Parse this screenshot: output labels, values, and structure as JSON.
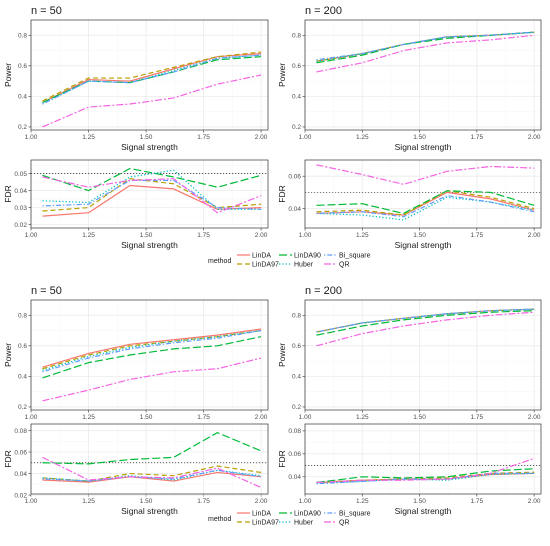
{
  "colors": {
    "LinDA": "#F8766D",
    "LinDA97": "#B79F00",
    "LinDA90": "#00BA38",
    "Huber": "#00BFC4",
    "Bi_square": "#619CFF",
    "QR": "#F564E3",
    "panel_border": "#333333",
    "grid_major": "#ebebeb",
    "grid_minor": "#f5f5f5"
  },
  "line_styles": {
    "LinDA": "solid",
    "LinDA97": "dashed",
    "LinDA90": "longdash",
    "Huber": "dotted",
    "Bi_square": "dotdash",
    "QR": "twodash"
  },
  "legend": {
    "title": "method",
    "entries": [
      "LinDA",
      "LinDA97",
      "LinDA90",
      "Huber",
      "Bi_square",
      "QR"
    ]
  },
  "chart_data": [
    {
      "type": "line",
      "title": "n = 50",
      "xlabel": "Signal strength",
      "ylabel": "Power",
      "x": [
        1.05,
        1.25,
        1.43,
        1.62,
        1.81,
        2.0
      ],
      "xlim": [
        1.0,
        2.03
      ],
      "ylim": [
        0.18,
        0.9
      ],
      "xticks": [
        "1.00",
        "1.25",
        "1.50",
        "1.75",
        "2.00"
      ],
      "yticks": [
        "0.2",
        "0.4",
        "0.6",
        "0.8"
      ],
      "series": [
        {
          "name": "LinDA",
          "values": [
            0.36,
            0.51,
            0.5,
            0.58,
            0.66,
            0.68
          ]
        },
        {
          "name": "LinDA97",
          "values": [
            0.37,
            0.52,
            0.52,
            0.59,
            0.66,
            0.69
          ]
        },
        {
          "name": "LinDA90",
          "values": [
            0.36,
            0.5,
            0.49,
            0.56,
            0.64,
            0.66
          ]
        },
        {
          "name": "Huber",
          "values": [
            0.35,
            0.5,
            0.49,
            0.57,
            0.65,
            0.67
          ]
        },
        {
          "name": "Bi_square",
          "values": [
            0.35,
            0.5,
            0.49,
            0.56,
            0.65,
            0.67
          ]
        },
        {
          "name": "QR",
          "values": [
            0.2,
            0.33,
            0.35,
            0.39,
            0.48,
            0.54
          ]
        }
      ]
    },
    {
      "type": "line",
      "title": "n = 200",
      "xlabel": "Signal strength",
      "ylabel": "Power",
      "x": [
        1.05,
        1.25,
        1.43,
        1.62,
        1.81,
        2.0
      ],
      "xlim": [
        1.0,
        2.03
      ],
      "ylim": [
        0.18,
        0.9
      ],
      "xticks": [
        "1.00",
        "1.25",
        "1.50",
        "1.75",
        "2.00"
      ],
      "yticks": [
        "0.2",
        "0.4",
        "0.6",
        "0.8"
      ],
      "series": [
        {
          "name": "LinDA",
          "values": [
            0.63,
            0.68,
            0.74,
            0.79,
            0.8,
            0.82
          ]
        },
        {
          "name": "LinDA97",
          "values": [
            0.63,
            0.68,
            0.74,
            0.79,
            0.8,
            0.82
          ]
        },
        {
          "name": "LinDA90",
          "values": [
            0.62,
            0.67,
            0.74,
            0.78,
            0.8,
            0.82
          ]
        },
        {
          "name": "Huber",
          "values": [
            0.63,
            0.68,
            0.74,
            0.79,
            0.8,
            0.82
          ]
        },
        {
          "name": "Bi_square",
          "values": [
            0.64,
            0.68,
            0.74,
            0.79,
            0.8,
            0.82
          ]
        },
        {
          "name": "QR",
          "values": [
            0.56,
            0.62,
            0.7,
            0.75,
            0.77,
            0.8
          ]
        }
      ]
    },
    {
      "type": "line",
      "title": "",
      "xlabel": "Signal strength",
      "ylabel": "FDR",
      "x": [
        1.05,
        1.25,
        1.43,
        1.62,
        1.81,
        2.0
      ],
      "xlim": [
        1.0,
        2.03
      ],
      "ylim": [
        0.018,
        0.058
      ],
      "xticks": [
        "1.00",
        "1.25",
        "1.50",
        "1.75",
        "2.00"
      ],
      "yticks": [
        "0.02",
        "0.03",
        "0.04",
        "0.05"
      ],
      "reference_line": 0.05,
      "series": [
        {
          "name": "LinDA",
          "values": [
            0.025,
            0.027,
            0.043,
            0.041,
            0.029,
            0.03
          ]
        },
        {
          "name": "LinDA97",
          "values": [
            0.028,
            0.03,
            0.047,
            0.044,
            0.03,
            0.032
          ]
        },
        {
          "name": "LinDA90",
          "values": [
            0.049,
            0.04,
            0.053,
            0.048,
            0.042,
            0.049
          ]
        },
        {
          "name": "Huber",
          "values": [
            0.034,
            0.033,
            0.048,
            0.052,
            0.029,
            0.029
          ]
        },
        {
          "name": "Bi_square",
          "values": [
            0.031,
            0.032,
            0.046,
            0.046,
            0.03,
            0.029
          ]
        },
        {
          "name": "QR",
          "values": [
            0.048,
            0.042,
            0.046,
            0.047,
            0.027,
            0.037
          ]
        }
      ]
    },
    {
      "type": "line",
      "title": "",
      "xlabel": "Signal strength",
      "ylabel": "FDR",
      "x": [
        1.05,
        1.25,
        1.43,
        1.62,
        1.81,
        2.0
      ],
      "xlim": [
        1.0,
        2.03
      ],
      "ylim": [
        0.028,
        0.07
      ],
      "xticks": [
        "1.00",
        "1.25",
        "1.50",
        "1.75",
        "2.00"
      ],
      "yticks": [
        "0.04",
        "0.06"
      ],
      "reference_line": 0.05,
      "series": [
        {
          "name": "LinDA",
          "values": [
            0.037,
            0.038,
            0.036,
            0.05,
            0.046,
            0.039
          ]
        },
        {
          "name": "LinDA97",
          "values": [
            0.038,
            0.039,
            0.036,
            0.051,
            0.047,
            0.04
          ]
        },
        {
          "name": "LinDA90",
          "values": [
            0.042,
            0.043,
            0.037,
            0.051,
            0.05,
            0.042
          ]
        },
        {
          "name": "Huber",
          "values": [
            0.037,
            0.036,
            0.033,
            0.047,
            0.044,
            0.039
          ]
        },
        {
          "name": "Bi_square",
          "values": [
            0.037,
            0.038,
            0.035,
            0.048,
            0.044,
            0.038
          ]
        },
        {
          "name": "QR",
          "values": [
            0.067,
            0.061,
            0.055,
            0.063,
            0.066,
            0.065
          ]
        }
      ]
    },
    {
      "type": "line",
      "title": "n = 50",
      "xlabel": "Signal strength",
      "ylabel": "Power",
      "x": [
        1.05,
        1.25,
        1.43,
        1.62,
        1.81,
        2.0
      ],
      "xlim": [
        1.0,
        2.03
      ],
      "ylim": [
        0.18,
        0.9
      ],
      "xticks": [
        "1.00",
        "1.25",
        "1.50",
        "1.75",
        "2.00"
      ],
      "yticks": [
        "0.2",
        "0.4",
        "0.6",
        "0.8"
      ],
      "series": [
        {
          "name": "LinDA",
          "values": [
            0.46,
            0.55,
            0.61,
            0.64,
            0.67,
            0.71
          ]
        },
        {
          "name": "LinDA97",
          "values": [
            0.45,
            0.54,
            0.6,
            0.63,
            0.66,
            0.7
          ]
        },
        {
          "name": "LinDA90",
          "values": [
            0.39,
            0.49,
            0.54,
            0.58,
            0.6,
            0.66
          ]
        },
        {
          "name": "Huber",
          "values": [
            0.44,
            0.53,
            0.59,
            0.63,
            0.66,
            0.7
          ]
        },
        {
          "name": "Bi_square",
          "values": [
            0.43,
            0.52,
            0.58,
            0.62,
            0.65,
            0.7
          ]
        },
        {
          "name": "QR",
          "values": [
            0.24,
            0.31,
            0.38,
            0.43,
            0.45,
            0.52
          ]
        }
      ]
    },
    {
      "type": "line",
      "title": "n = 200",
      "xlabel": "Signal strength",
      "ylabel": "Power",
      "x": [
        1.05,
        1.25,
        1.43,
        1.62,
        1.81,
        2.0
      ],
      "xlim": [
        1.0,
        2.03
      ],
      "ylim": [
        0.18,
        0.9
      ],
      "xticks": [
        "1.00",
        "1.25",
        "1.50",
        "1.75",
        "2.00"
      ],
      "yticks": [
        "0.2",
        "0.4",
        "0.6",
        "0.8"
      ],
      "series": [
        {
          "name": "LinDA",
          "values": [
            0.69,
            0.75,
            0.78,
            0.81,
            0.83,
            0.84
          ]
        },
        {
          "name": "LinDA97",
          "values": [
            0.69,
            0.75,
            0.78,
            0.81,
            0.83,
            0.84
          ]
        },
        {
          "name": "LinDA90",
          "values": [
            0.67,
            0.73,
            0.77,
            0.8,
            0.82,
            0.83
          ]
        },
        {
          "name": "Huber",
          "values": [
            0.69,
            0.75,
            0.78,
            0.81,
            0.83,
            0.84
          ]
        },
        {
          "name": "Bi_square",
          "values": [
            0.69,
            0.75,
            0.78,
            0.81,
            0.83,
            0.84
          ]
        },
        {
          "name": "QR",
          "values": [
            0.6,
            0.68,
            0.73,
            0.77,
            0.8,
            0.82
          ]
        }
      ]
    },
    {
      "type": "line",
      "title": "",
      "xlabel": "Signal strength",
      "ylabel": "FDR",
      "x": [
        1.05,
        1.25,
        1.43,
        1.62,
        1.81,
        2.0
      ],
      "xlim": [
        1.0,
        2.03
      ],
      "ylim": [
        0.021,
        0.086
      ],
      "xticks": [
        "1.00",
        "1.25",
        "1.50",
        "1.75",
        "2.00"
      ],
      "yticks": [
        "0.02",
        "0.04",
        "0.06",
        "0.08"
      ],
      "reference_line": 0.05,
      "series": [
        {
          "name": "LinDA",
          "values": [
            0.034,
            0.032,
            0.037,
            0.033,
            0.041,
            0.037
          ]
        },
        {
          "name": "LinDA97",
          "values": [
            0.036,
            0.033,
            0.04,
            0.038,
            0.047,
            0.041
          ]
        },
        {
          "name": "LinDA90",
          "values": [
            0.05,
            0.049,
            0.053,
            0.055,
            0.078,
            0.061
          ]
        },
        {
          "name": "Huber",
          "values": [
            0.036,
            0.033,
            0.038,
            0.034,
            0.043,
            0.038
          ]
        },
        {
          "name": "Bi_square",
          "values": [
            0.035,
            0.033,
            0.037,
            0.035,
            0.043,
            0.037
          ]
        },
        {
          "name": "QR",
          "values": [
            0.055,
            0.034,
            0.037,
            0.036,
            0.045,
            0.027
          ]
        }
      ]
    },
    {
      "type": "line",
      "title": "",
      "xlabel": "Signal strength",
      "ylabel": "FDR",
      "x": [
        1.05,
        1.25,
        1.43,
        1.62,
        1.81,
        2.0
      ],
      "xlim": [
        1.0,
        2.03
      ],
      "ylim": [
        0.025,
        0.086
      ],
      "xticks": [
        "1.00",
        "1.25",
        "1.50",
        "1.75",
        "2.00"
      ],
      "yticks": [
        "0.04",
        "0.06",
        "0.08"
      ],
      "reference_line": 0.05,
      "series": [
        {
          "name": "LinDA",
          "values": [
            0.035,
            0.037,
            0.038,
            0.038,
            0.042,
            0.043
          ]
        },
        {
          "name": "LinDA97",
          "values": [
            0.035,
            0.037,
            0.038,
            0.039,
            0.043,
            0.044
          ]
        },
        {
          "name": "LinDA90",
          "values": [
            0.035,
            0.04,
            0.039,
            0.04,
            0.045,
            0.047
          ]
        },
        {
          "name": "Huber",
          "values": [
            0.034,
            0.036,
            0.038,
            0.037,
            0.042,
            0.043
          ]
        },
        {
          "name": "Bi_square",
          "values": [
            0.034,
            0.036,
            0.038,
            0.038,
            0.043,
            0.043
          ]
        },
        {
          "name": "QR",
          "values": [
            0.035,
            0.037,
            0.037,
            0.038,
            0.043,
            0.056
          ]
        }
      ]
    }
  ]
}
